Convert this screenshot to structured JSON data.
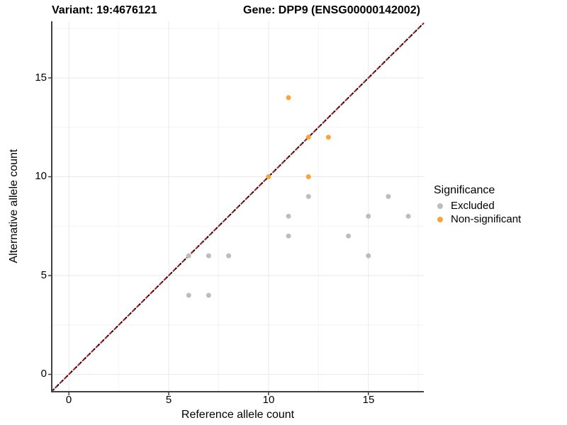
{
  "header": {
    "title_left": "Variant: 19:4676121",
    "title_right": "Gene: DPP9 (ENSG00000142002)"
  },
  "chart_data": {
    "type": "scatter",
    "title": "Variant: 19:4676121   Gene: DPP9 (ENSG00000142002)",
    "xlabel": "Reference allele count",
    "ylabel": "Alternative allele count",
    "xlim": [
      -0.86,
      17.78
    ],
    "ylim": [
      -0.88,
      17.87
    ],
    "x_ticks": [
      0,
      5,
      10,
      15
    ],
    "y_ticks": [
      0,
      5,
      10,
      15
    ],
    "x_minor_gridlines": [
      2.5,
      7.5,
      12.5,
      17.5
    ],
    "y_minor_gridlines": [
      2.5,
      7.5,
      12.5,
      17.5
    ],
    "grid": true,
    "identity_line": {
      "equation": "y = x",
      "style": "dashed",
      "colors": [
        "#000000",
        "#A51C1C"
      ]
    },
    "series": [
      {
        "name": "Excluded",
        "color": "#BDBDBD",
        "points": [
          [
            6,
            4
          ],
          [
            7,
            4
          ],
          [
            6,
            6
          ],
          [
            7,
            6
          ],
          [
            8,
            6
          ],
          [
            15,
            6
          ],
          [
            11,
            7
          ],
          [
            14,
            7
          ],
          [
            11,
            8
          ],
          [
            15,
            8
          ],
          [
            17,
            8
          ],
          [
            12,
            9
          ],
          [
            16,
            9
          ]
        ]
      },
      {
        "name": "Non-significant",
        "color": "#FBA33C",
        "points": [
          [
            10,
            10
          ],
          [
            12,
            10
          ],
          [
            12,
            12
          ],
          [
            13,
            12
          ],
          [
            11,
            14
          ]
        ]
      }
    ],
    "legend": {
      "title": "Significance",
      "position": "right",
      "items": [
        {
          "label": "Excluded",
          "color": "#BDBDBD"
        },
        {
          "label": "Non-significant",
          "color": "#FBA33C"
        }
      ]
    },
    "colors": {
      "major_gridline": "#e9e9e9",
      "minor_gridline": "#f4f4f4",
      "axis_line": "#404040",
      "background": "#ffffff"
    }
  }
}
